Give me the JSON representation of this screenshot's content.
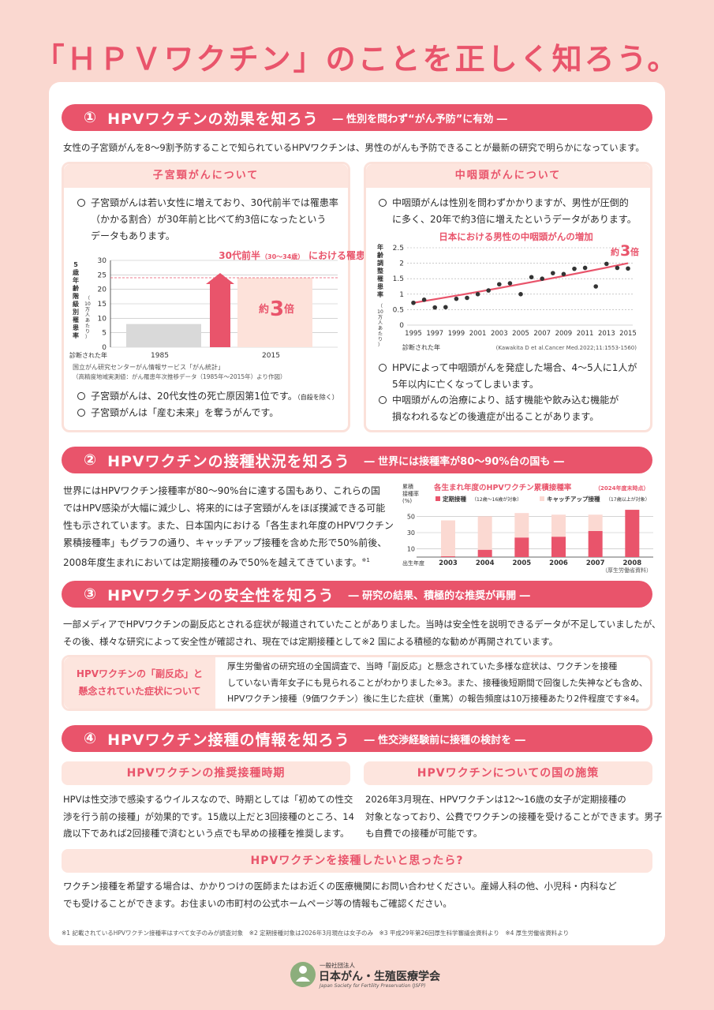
{
  "title": "「ＨＰＶワクチン」のことを正しく知ろう。",
  "s1": {
    "num": "①",
    "title": "HPVワクチンの効果を知ろう",
    "sub": "― 性別を問わず“がん予防”に有効 ―",
    "intro": "女性の子宮頸がんを8〜9割予防することで知られているHPVワクチンは、男性のがんも予防できることが最新の研究で明らかになっています。",
    "left": {
      "head": "子宮頸がんについて",
      "p1": [
        "子宮頸がんは若い女性に増えており、30代前半では罹患率",
        "（かかる割合）が30年前と比べて約3倍になったという",
        "データもあります。"
      ],
      "p2": "子宮頸がんは、20代女性の死亡原因第1位です。",
      "p2note": "（自殺を除く）",
      "p3": "子宮頸がんは「産む未来」を奪うがんです。",
      "source1": "国立がん研究センターがん情報サービス「がん統計」",
      "source2": "（高精度地域実測値：がん罹患年次推移データ（1985年〜2015年）より作図）"
    },
    "right": {
      "head": "中咽頭がんについて",
      "p1": [
        "中咽頭がんは性別を問わずかかりますが、男性が圧倒的",
        "に多く、20年で約3倍に増えたというデータがあります。"
      ],
      "p2": [
        "HPVによって中咽頭がんを発症した場合、4〜5人に1人が",
        "5年以内に亡くなってしまいます。"
      ],
      "p3": [
        "中咽頭がんの治療により、話す機能や飲み込む機能が",
        "損なわれるなどの後遺症が出ることがあります。"
      ]
    }
  },
  "s2": {
    "num": "②",
    "title": "HPVワクチンの接種状況を知ろう",
    "sub": "― 世界には接種率が80〜90%台の国も ―",
    "body": [
      "世界にはHPVワクチン接種率が80〜90%台に達する国もあり、これらの国",
      "ではHPV感染が大幅に減少し、将来的には子宮頸がんをほぼ撲滅できる可能",
      "性も示されています。また、日本国内における「各生まれ年度のHPVワクチン",
      "累積接種率」もグラフの通り、キャッチアップ接種を含めた形で50%前後、",
      "2008年度生まれにおいては定期接種のみで50%を越えてきています。"
    ],
    "body_note": "※1"
  },
  "s3": {
    "num": "③",
    "title": "HPVワクチンの安全性を知ろう",
    "sub": "― 研究の結果、積極的な推奨が再開 ―",
    "body": [
      "一部メディアでHPVワクチンの副反応とされる症状が報道されていたことがありました。当時は安全性を説明できるデータが不足していましたが、",
      "その後、様々な研究によって安全性が確認され、現在では定期接種として※2 国による積極的な勧めが再開されています。"
    ],
    "box_label": [
      "HPVワクチンの「副反応」と",
      "懸念されていた症状について"
    ],
    "box_text": [
      "厚生労働省の研究班の全国調査で、当時「副反応」と懸念されていた多様な症状は、ワクチンを接種",
      "していない青年女子にも見られることがわかりました※3。また、接種後短期間で回復した失神なども含め、",
      "HPVワクチン接種（9価ワクチン）後に生じた症状（重篤）の報告頻度は10万接種あたり2件程度です※4。"
    ]
  },
  "s4": {
    "num": "④",
    "title": "HPVワクチン接種の情報を知ろう",
    "sub": "― 性交渉経験前に接種の検討を ―",
    "left_head": "HPVワクチンの推奨接種時期",
    "left_body": [
      "HPVは性交渉で感染するウイルスなので、時期としては「初めての性交",
      "渉を行う前の接種」が効果的です。15歳以上だと3回接種のところ、14",
      "歳以下であれば2回接種で済むという点でも早めの接種を推奨します。"
    ],
    "right_head": "HPVワクチンについての国の施策",
    "right_body": [
      "2026年3月現在、HPVワクチンは12〜16歳の女子が定期接種の",
      "対象となっており、公費でワクチンの接種を受けることができます。男子",
      "も自費での接種が可能です。"
    ],
    "bottom_head": "HPVワクチンを接種したいと思ったら?",
    "bottom_body": [
      "ワクチン接種を希望する場合は、かかりつけの医師またはお近くの医療機関にお問い合わせください。産婦人科の他、小児科・内科など",
      "でも受けることができます。お住まいの市町村の公式ホームページ等の情報もご確認ください。"
    ]
  },
  "footnotes": "※1 記載されているHPVワクチン接種率はすべて女子のみが調査対象　※2 定期接種対象は2026年3月現在は女子のみ　※3 平成29年第26回厚生科学審議会資料より　※4 厚生労働省資料より",
  "logo": {
    "small": "一般社団法人",
    "name": "日本がん・生殖医療学会",
    "en": "Japan Society for Fertility Preservation (JSFP)"
  },
  "chart_data": [
    {
      "type": "bar",
      "title": "30代前半（30〜34歳）における罹患率",
      "title_main_a": "30代前半",
      "title_paren": "（30〜34歳）",
      "title_main_b": "における罹患率",
      "ylabel": [
        "5",
        "歳",
        "年",
        "齢",
        "階",
        "級",
        "別",
        "罹",
        "患",
        "率"
      ],
      "yunit": [
        "（",
        "10",
        "万",
        "人",
        "あ",
        "た",
        "り",
        "）"
      ],
      "xlabel": "診断された年",
      "categories": [
        "1985",
        "2015"
      ],
      "values": [
        8,
        24
      ],
      "yticks": [
        "0",
        "5",
        "10",
        "15",
        "20",
        "25",
        "30"
      ],
      "ylim": [
        0,
        30
      ],
      "annotation_a": "約",
      "annotation_b": "3",
      "annotation_c": "倍",
      "colors": {
        "1985": "#d9d9d9",
        "2015": "#fde2da",
        "arrow": "#e9546b"
      }
    },
    {
      "type": "scatter",
      "title": "日本における男性の中咽頭がんの増加",
      "ylabel": [
        "年",
        "齢",
        "調",
        "整",
        "罹",
        "患",
        "率"
      ],
      "yunit": [
        "（",
        "10",
        "万",
        "人",
        "あ",
        "た",
        "り",
        "）"
      ],
      "xlabel": "診断された年",
      "source": "(Kawakita D et al.Cancer Med.2022;11:1553-1560)",
      "annotation_a": "約",
      "annotation_b": "3",
      "annotation_c": "倍",
      "x": [
        1995,
        1996,
        1997,
        1998,
        1999,
        2000,
        2001,
        2002,
        2003,
        2004,
        2005,
        2006,
        2007,
        2008,
        2009,
        2010,
        2011,
        2012,
        2013,
        2014,
        2015
      ],
      "y": [
        0.72,
        0.82,
        0.57,
        0.58,
        0.85,
        0.88,
        1.0,
        1.12,
        1.32,
        1.35,
        1.0,
        1.55,
        1.5,
        1.68,
        1.65,
        1.82,
        1.85,
        1.25,
        1.98,
        1.85,
        1.83
      ],
      "trend": [
        0.72,
        1.12,
        1.5,
        2.0
      ],
      "xticks": [
        "1995",
        "1997",
        "1999",
        "2001",
        "2003",
        "2005",
        "2007",
        "2009",
        "2011",
        "2013",
        "2015"
      ],
      "yticks": [
        "0",
        "0.5",
        "1",
        "1.5",
        "2",
        "2.5"
      ],
      "ylim": [
        0,
        2.5
      ]
    },
    {
      "type": "bar",
      "title_main": "各生まれ年度のHPVワクチン累積接種率",
      "title_note": "（2024年度末時点）",
      "ylabel": [
        "累積",
        "接種率",
        "(%)"
      ],
      "xlabel": "出生年度",
      "source": "（厚生労働省資料）",
      "categories": [
        "2003",
        "2004",
        "2005",
        "2006",
        "2007",
        "2008"
      ],
      "series": [
        {
          "name": "定期接種",
          "note": "（12歳〜16歳が対象）",
          "values": [
            1,
            9,
            24,
            25,
            32,
            58
          ]
        },
        {
          "name": "キャッチアップ接種",
          "note": "（17歳以上が対象）",
          "values": [
            44,
            41,
            30,
            27,
            20,
            0
          ]
        }
      ],
      "yticks": [
        "10",
        "30",
        "50"
      ],
      "ylim": [
        0,
        60
      ],
      "colors": {
        "regular": "#e9546b",
        "catchup": "#fbd9d2"
      }
    }
  ]
}
